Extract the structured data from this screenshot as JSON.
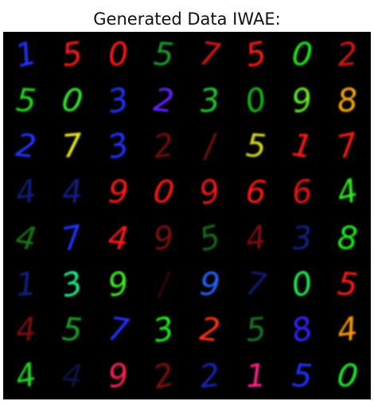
{
  "title": "Generated Data IWAE:",
  "grid": {
    "rows": 8,
    "cols": 8,
    "background": "#000000",
    "samples": [
      [
        {
          "digit": "1",
          "color": "#2233ff",
          "op": 1.0
        },
        {
          "digit": "5",
          "color": "#ff1a1a",
          "op": 1.0
        },
        {
          "digit": "0",
          "color": "#ff1a1a",
          "op": 1.0
        },
        {
          "digit": "5",
          "color": "#22bb33",
          "op": 0.85
        },
        {
          "digit": "7",
          "color": "#ee1a1a",
          "op": 0.9
        },
        {
          "digit": "5",
          "color": "#ff1a1a",
          "op": 1.0
        },
        {
          "digit": "0",
          "color": "#22ee22",
          "op": 1.0
        },
        {
          "digit": "2",
          "color": "#ee1a1a",
          "op": 0.9
        }
      ],
      [
        {
          "digit": "5",
          "color": "#22dd22",
          "op": 1.0
        },
        {
          "digit": "0",
          "color": "#33ee33",
          "op": 1.0
        },
        {
          "digit": "3",
          "color": "#2233ff",
          "op": 1.0
        },
        {
          "digit": "2",
          "color": "#6622ff",
          "op": 1.0
        },
        {
          "digit": "3",
          "color": "#22cc33",
          "op": 1.0
        },
        {
          "digit": "0",
          "color": "#22cc22",
          "op": 0.9
        },
        {
          "digit": "9",
          "color": "#66ee22",
          "op": 1.0
        },
        {
          "digit": "8",
          "color": "#ffaa11",
          "op": 1.0
        }
      ],
      [
        {
          "digit": "2",
          "color": "#2233ff",
          "op": 1.0
        },
        {
          "digit": "7",
          "color": "#eeee22",
          "op": 1.0
        },
        {
          "digit": "3",
          "color": "#2233ff",
          "op": 1.0
        },
        {
          "digit": "2",
          "color": "#cc1a1a",
          "op": 0.55
        },
        {
          "digit": "/",
          "color": "#cc1a1a",
          "op": 0.6
        },
        {
          "digit": "5",
          "color": "#dddd22",
          "op": 1.0
        },
        {
          "digit": "1",
          "color": "#ff1a1a",
          "op": 1.0
        },
        {
          "digit": "7",
          "color": "#ff1a1a",
          "op": 1.0
        }
      ],
      [
        {
          "digit": "4",
          "color": "#2233dd",
          "op": 0.55
        },
        {
          "digit": "4",
          "color": "#2233dd",
          "op": 0.6
        },
        {
          "digit": "9",
          "color": "#ff1a1a",
          "op": 1.0
        },
        {
          "digit": "0",
          "color": "#ff1a1a",
          "op": 1.0
        },
        {
          "digit": "9",
          "color": "#ee1a1a",
          "op": 1.0
        },
        {
          "digit": "6",
          "color": "#ff1a1a",
          "op": 1.0
        },
        {
          "digit": "6",
          "color": "#ff1a1a",
          "op": 0.9
        },
        {
          "digit": "4",
          "color": "#33ee22",
          "op": 1.0
        }
      ],
      [
        {
          "digit": "4",
          "color": "#22aa22",
          "op": 0.7
        },
        {
          "digit": "7",
          "color": "#2233ff",
          "op": 1.0
        },
        {
          "digit": "4",
          "color": "#ff1a1a",
          "op": 1.0
        },
        {
          "digit": "9",
          "color": "#cc1a1a",
          "op": 0.6
        },
        {
          "digit": "5",
          "color": "#229922",
          "op": 0.7
        },
        {
          "digit": "4",
          "color": "#cc1a1a",
          "op": 0.6
        },
        {
          "digit": "3",
          "color": "#2233dd",
          "op": 0.6
        },
        {
          "digit": "8",
          "color": "#22ee22",
          "op": 1.0
        }
      ],
      [
        {
          "digit": "1",
          "color": "#2233dd",
          "op": 0.6
        },
        {
          "digit": "3",
          "color": "#22ee88",
          "op": 1.0
        },
        {
          "digit": "9",
          "color": "#44ee22",
          "op": 1.0
        },
        {
          "digit": "/",
          "color": "#cc1a1a",
          "op": 0.25
        },
        {
          "digit": "9",
          "color": "#2266ff",
          "op": 1.0
        },
        {
          "digit": "7",
          "color": "#2233dd",
          "op": 0.5
        },
        {
          "digit": "0",
          "color": "#22ee55",
          "op": 1.0
        },
        {
          "digit": "5",
          "color": "#ff1a1a",
          "op": 1.0
        }
      ],
      [
        {
          "digit": "4",
          "color": "#cc1a1a",
          "op": 0.6
        },
        {
          "digit": "5",
          "color": "#22cc33",
          "op": 0.8
        },
        {
          "digit": "7",
          "color": "#2233ff",
          "op": 1.0
        },
        {
          "digit": "3",
          "color": "#22ee22",
          "op": 1.0
        },
        {
          "digit": "2",
          "color": "#ff3311",
          "op": 1.0
        },
        {
          "digit": "5",
          "color": "#22aa33",
          "op": 0.7
        },
        {
          "digit": "8",
          "color": "#3322ff",
          "op": 1.0
        },
        {
          "digit": "4",
          "color": "#ff9911",
          "op": 1.0
        }
      ],
      [
        {
          "digit": "4",
          "color": "#22dd22",
          "op": 1.0
        },
        {
          "digit": "4",
          "color": "#2233aa",
          "op": 0.4
        },
        {
          "digit": "9",
          "color": "#ff2255",
          "op": 1.0
        },
        {
          "digit": "2",
          "color": "#cc1a1a",
          "op": 0.6
        },
        {
          "digit": "2",
          "color": "#2233ff",
          "op": 0.7
        },
        {
          "digit": "1",
          "color": "#ff2288",
          "op": 1.0
        },
        {
          "digit": "5",
          "color": "#2233ff",
          "op": 1.0
        },
        {
          "digit": "0",
          "color": "#22ee33",
          "op": 1.0
        }
      ]
    ]
  }
}
